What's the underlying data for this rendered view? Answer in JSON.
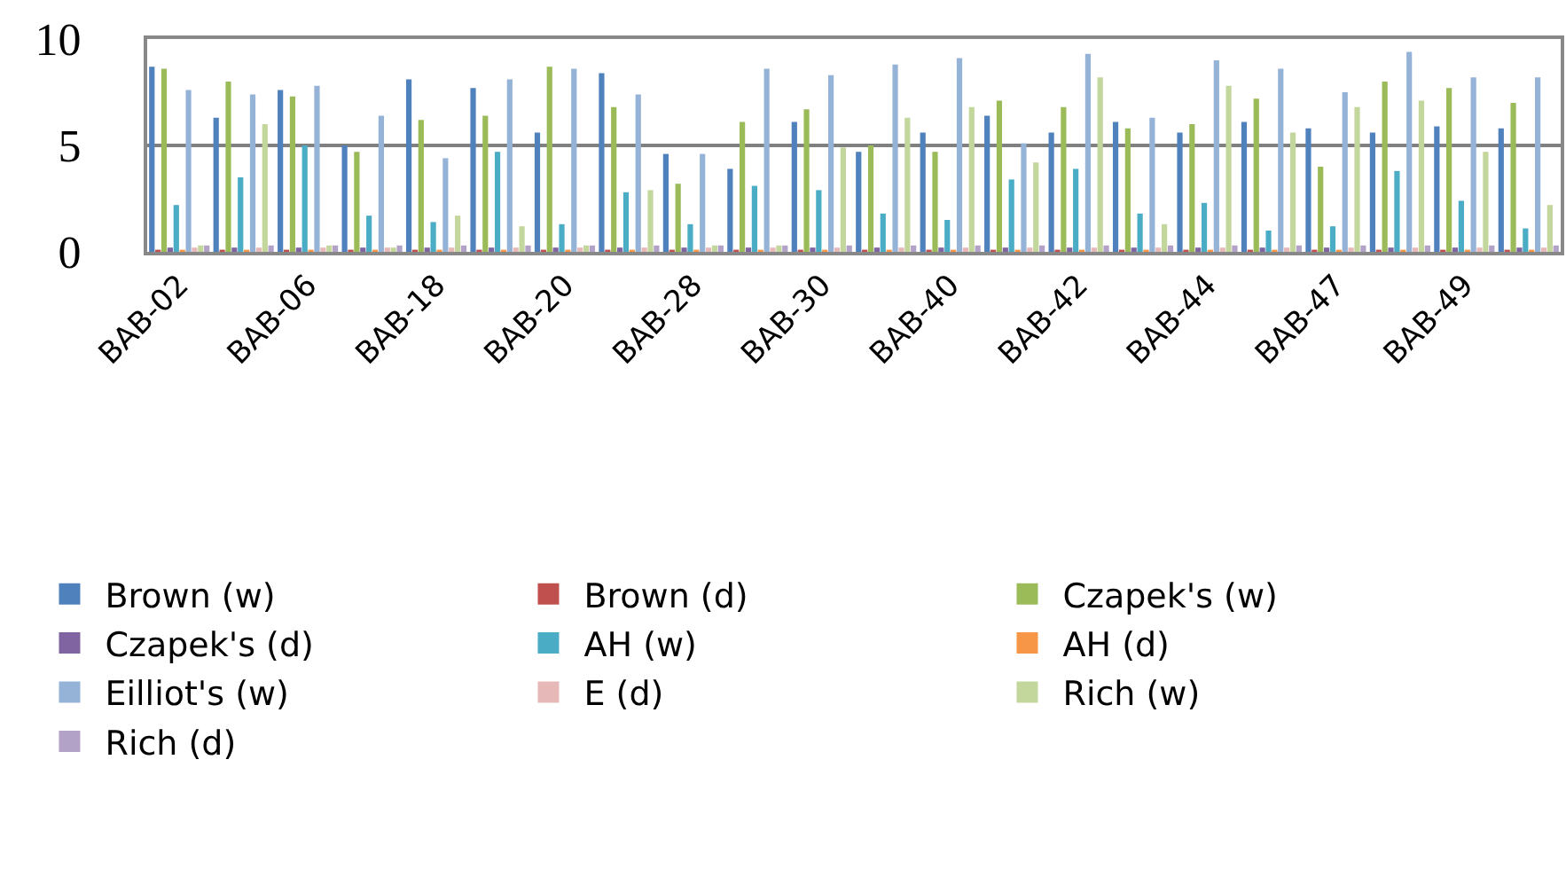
{
  "chart_data": {
    "type": "bar",
    "categories": [
      "BAB-02",
      null,
      "BAB-06",
      null,
      "BAB-18",
      null,
      "BAB-20",
      null,
      "BAB-28",
      null,
      "BAB-30",
      null,
      "BAB-40",
      null,
      "BAB-42",
      null,
      "BAB-44",
      null,
      "BAB-47",
      null,
      "BAB-49",
      null
    ],
    "series": [
      {
        "name": "Brown (w)",
        "color": "#4f81bd",
        "values": [
          8.7,
          6.3,
          7.6,
          5.0,
          8.1,
          7.7,
          5.6,
          8.4,
          4.6,
          3.9,
          6.1,
          4.7,
          5.6,
          6.4,
          5.6,
          6.1,
          5.6,
          6.1,
          5.8,
          5.6,
          5.9,
          5.8
        ]
      },
      {
        "name": "Brown (d)",
        "color": "#c0504d",
        "values": [
          0.1,
          0.1,
          0.1,
          0.1,
          0.1,
          0.1,
          0.1,
          0.1,
          0.1,
          0.1,
          0.1,
          0.1,
          0.1,
          0.1,
          0.1,
          0.1,
          0.1,
          0.1,
          0.1,
          0.1,
          0.1,
          0.1
        ]
      },
      {
        "name": "Czapek's (w)",
        "color": "#9bbb59",
        "values": [
          8.6,
          8.0,
          7.3,
          4.7,
          6.2,
          6.4,
          8.7,
          6.8,
          3.2,
          6.1,
          6.7,
          5.0,
          4.7,
          7.1,
          6.8,
          5.8,
          6.0,
          7.2,
          4.0,
          8.0,
          7.7,
          7.0
        ]
      },
      {
        "name": "Czapek's (d)",
        "color": "#8064a2",
        "values": [
          0.2,
          0.2,
          0.2,
          0.2,
          0.2,
          0.2,
          0.2,
          0.2,
          0.2,
          0.2,
          0.2,
          0.2,
          0.2,
          0.2,
          0.2,
          0.2,
          0.2,
          0.2,
          0.2,
          0.2,
          0.2,
          0.2
        ]
      },
      {
        "name": "AH (w)",
        "color": "#4bacc6",
        "values": [
          2.2,
          3.5,
          5.0,
          1.7,
          1.4,
          4.7,
          1.3,
          2.8,
          1.3,
          3.1,
          2.9,
          1.8,
          1.5,
          3.4,
          3.9,
          1.8,
          2.3,
          1.0,
          1.2,
          3.8,
          2.4,
          1.1
        ]
      },
      {
        "name": "AH (d)",
        "color": "#f79646",
        "values": [
          0.1,
          0.1,
          0.1,
          0.1,
          0.1,
          0.1,
          0.1,
          0.1,
          0.1,
          0.1,
          0.1,
          0.1,
          0.1,
          0.1,
          0.1,
          0.1,
          0.1,
          0.1,
          0.1,
          0.1,
          0.1,
          0.1
        ]
      },
      {
        "name": "Eilliot's (w)",
        "color": "#95b3d7",
        "values": [
          7.6,
          7.4,
          7.8,
          6.4,
          4.4,
          8.1,
          8.6,
          7.4,
          4.6,
          8.6,
          8.3,
          8.8,
          9.1,
          5.1,
          9.3,
          6.3,
          9.0,
          8.6,
          7.5,
          9.4,
          8.2,
          8.2
        ]
      },
      {
        "name": "E (d)",
        "color": "#e6b9b8",
        "values": [
          0.2,
          0.2,
          0.2,
          0.2,
          0.2,
          0.2,
          0.2,
          0.2,
          0.2,
          0.2,
          0.2,
          0.2,
          0.2,
          0.2,
          0.2,
          0.2,
          0.2,
          0.2,
          0.2,
          0.2,
          0.2,
          0.2
        ]
      },
      {
        "name": "Rich (w)",
        "color": "#c3d69b",
        "values": [
          0.3,
          6.0,
          0.3,
          0.2,
          1.7,
          1.2,
          0.3,
          2.9,
          0.3,
          0.3,
          4.9,
          6.3,
          6.8,
          4.2,
          8.2,
          1.3,
          7.8,
          5.6,
          6.8,
          7.1,
          4.7,
          2.2
        ]
      },
      {
        "name": "Rich (d)",
        "color": "#b3a2c7",
        "values": [
          0.3,
          0.3,
          0.3,
          0.3,
          0.3,
          0.3,
          0.3,
          0.3,
          0.3,
          0.3,
          0.3,
          0.3,
          0.3,
          0.3,
          0.3,
          0.3,
          0.3,
          0.3,
          0.3,
          0.3,
          0.3,
          0.3
        ]
      }
    ],
    "ylim": [
      0,
      10
    ],
    "yticks": [
      0,
      5,
      10
    ],
    "grid": "y",
    "legend": "bottom"
  }
}
